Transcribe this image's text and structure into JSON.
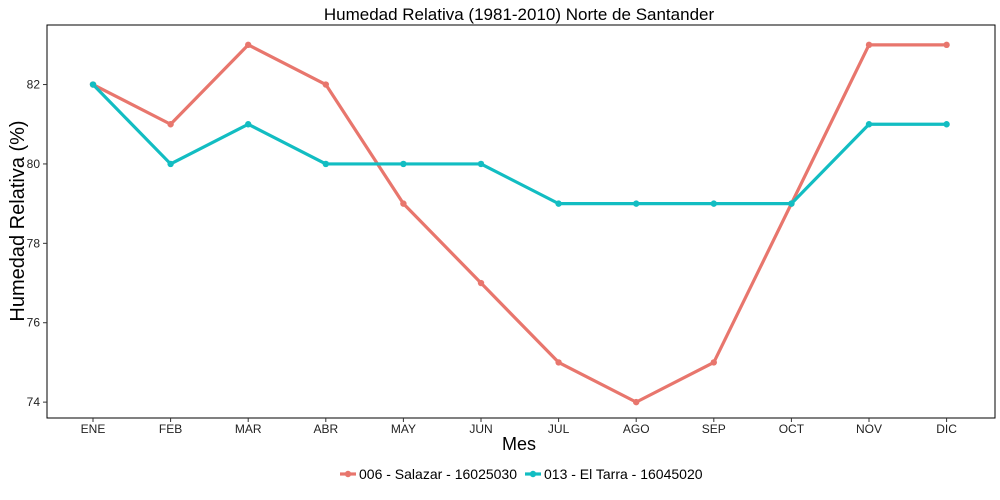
{
  "chart_data": {
    "type": "line",
    "title": "Humedad Relativa (1981-2010)  Norte de Santander",
    "xlabel": "Mes",
    "ylabel": "Humedad Relativa  (%)",
    "categories": [
      "ENE",
      "FEB",
      "MAR",
      "ABR",
      "MAY",
      "JUN",
      "JUL",
      "AGO",
      "SEP",
      "OCT",
      "NOV",
      "DIC"
    ],
    "ylim": [
      73.6,
      83.5
    ],
    "yticks": [
      74,
      76,
      78,
      80,
      82
    ],
    "ytick_labels": [
      "74",
      "76",
      "78",
      "80",
      "82"
    ],
    "grid": false,
    "legend_position": "bottom",
    "series": [
      {
        "name": "006 - Salazar - 16025030",
        "color": "#E8766D",
        "values": [
          82,
          81,
          83,
          82,
          79,
          77,
          75,
          74,
          75,
          79,
          83,
          83
        ]
      },
      {
        "name": "013 - El Tarra - 16045020",
        "color": "#12BDC2",
        "values": [
          82,
          80,
          81,
          80,
          80,
          80,
          79,
          79,
          79,
          79,
          81,
          81
        ]
      }
    ]
  }
}
